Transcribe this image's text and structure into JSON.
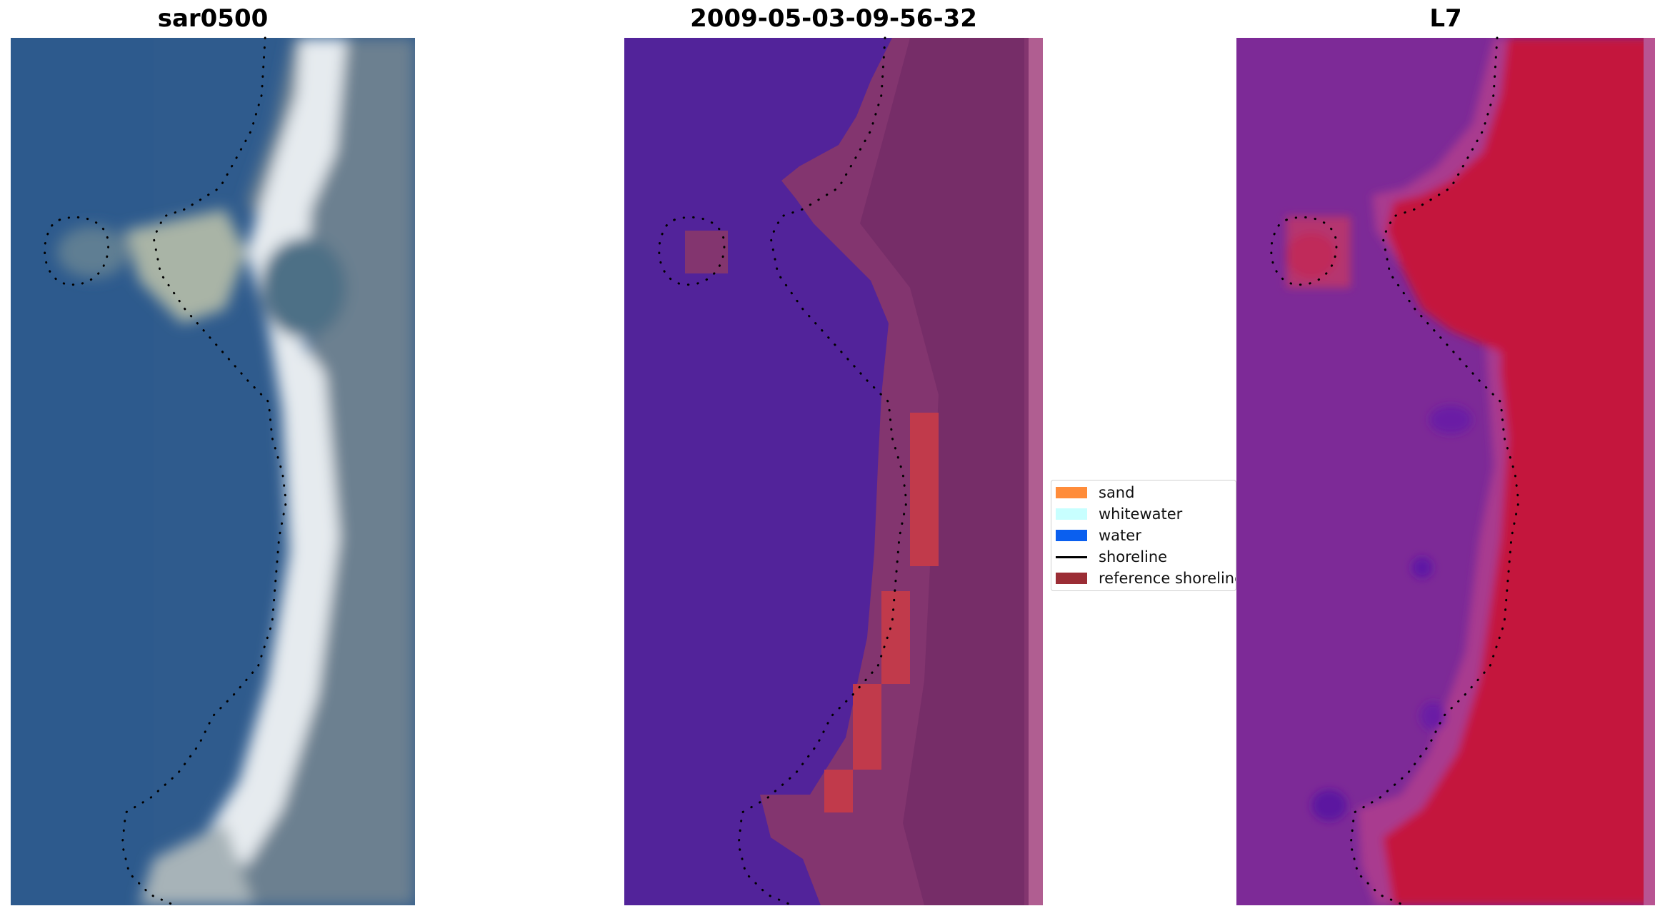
{
  "panels": {
    "rgb": {
      "title": "sar0500"
    },
    "classified": {
      "title": "2009-05-03-09-56-32"
    },
    "index": {
      "title": "L7"
    }
  },
  "legend": {
    "items": [
      {
        "label": "sand",
        "color": "#ff8c3a",
        "kind": "patch"
      },
      {
        "label": "whitewater",
        "color": "#c8ffff",
        "kind": "patch"
      },
      {
        "label": "water",
        "color": "#0a5fef",
        "kind": "patch"
      },
      {
        "label": "shoreline",
        "color": "#000000",
        "kind": "line"
      },
      {
        "label": "reference shoreline",
        "color": "#9b2d35",
        "kind": "patch"
      }
    ]
  },
  "colors": {
    "rgb_water": "#2e5a8c",
    "rgb_beach": "#e8ecef",
    "rgb_land": "#6f8290",
    "classified_water": "#52239a",
    "classified_land": "#82356f",
    "classified_reference": "#c0394a",
    "index_water": "#7c2898",
    "index_land": "#c4123a",
    "shoreline_dots": "#000000"
  }
}
